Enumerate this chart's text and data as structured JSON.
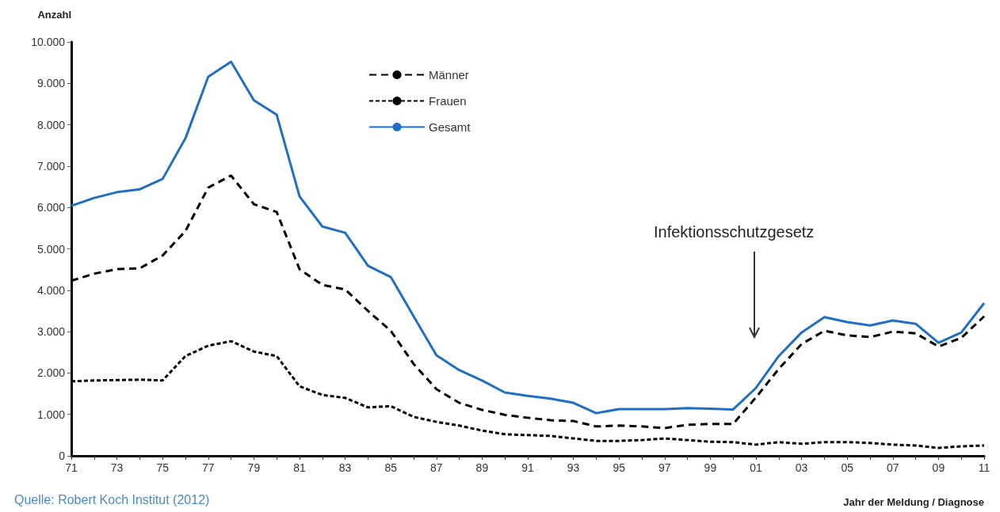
{
  "chart_data": {
    "type": "line",
    "ylabel": "Anzahl",
    "xlabel": "Jahr der Meldung / Diagnose",
    "categories": [
      "71",
      null,
      "73",
      null,
      "75",
      null,
      "77",
      null,
      "79",
      null,
      "81",
      null,
      "83",
      null,
      "85",
      null,
      "87",
      null,
      "89",
      null,
      "91",
      null,
      "93",
      null,
      "95",
      null,
      "97",
      null,
      "99",
      null,
      "01",
      null,
      "03",
      null,
      "05",
      null,
      "07",
      null,
      "09",
      null,
      "11"
    ],
    "series": [
      {
        "name": "Männer",
        "color": "#000000",
        "line_style": "dashed",
        "values": [
          4230,
          4400,
          4510,
          4530,
          4840,
          5430,
          6480,
          6770,
          6080,
          5890,
          4510,
          4130,
          4020,
          3500,
          3020,
          2220,
          1610,
          1280,
          1110,
          990,
          920,
          860,
          840,
          710,
          730,
          710,
          670,
          750,
          770,
          770,
          1410,
          2100,
          2700,
          3020,
          2910,
          2870,
          3000,
          2960,
          2640,
          2850,
          3370
        ]
      },
      {
        "name": "Frauen",
        "color": "#000000",
        "line_style": "dotted",
        "values": [
          1800,
          1820,
          1830,
          1840,
          1820,
          2410,
          2660,
          2770,
          2520,
          2410,
          1680,
          1470,
          1400,
          1170,
          1200,
          940,
          820,
          730,
          610,
          520,
          500,
          480,
          420,
          360,
          360,
          380,
          420,
          380,
          340,
          330,
          270,
          330,
          290,
          330,
          330,
          310,
          270,
          250,
          190,
          230,
          250
        ]
      },
      {
        "name": "Gesamt",
        "color": "#1f6fc5",
        "line_style": "solid",
        "values": [
          6040,
          6230,
          6370,
          6440,
          6690,
          7670,
          9160,
          9520,
          8590,
          8240,
          6270,
          5540,
          5390,
          4590,
          4320,
          3370,
          2430,
          2070,
          1820,
          1530,
          1450,
          1380,
          1280,
          1030,
          1130,
          1130,
          1130,
          1150,
          1140,
          1120,
          1640,
          2410,
          2980,
          3350,
          3230,
          3150,
          3270,
          3190,
          2730,
          2980,
          3690
        ]
      }
    ],
    "ylim": [
      0,
      10000
    ],
    "yticks": [
      0,
      {
        "value": 1000,
        "label": "1.000"
      },
      {
        "value": 2000,
        "label": "2.000"
      },
      {
        "value": 3000,
        "label": "3.000"
      },
      {
        "value": 4000,
        "label": "4.000"
      },
      {
        "value": 5000,
        "label": "5.000"
      },
      {
        "value": 6000,
        "label": "6.000"
      },
      {
        "value": 7000,
        "label": "7.000"
      },
      {
        "value": 8000,
        "label": "8.000"
      },
      {
        "value": 9000,
        "label": "9.000"
      },
      {
        "value": 10000,
        "label": "10.000"
      }
    ],
    "annotations": [
      "Infektionsschutzgesetz",
      "Quelle: Robert Koch Institut (2012)"
    ],
    "grid": false,
    "legend": "top left",
    "marker": "none"
  }
}
